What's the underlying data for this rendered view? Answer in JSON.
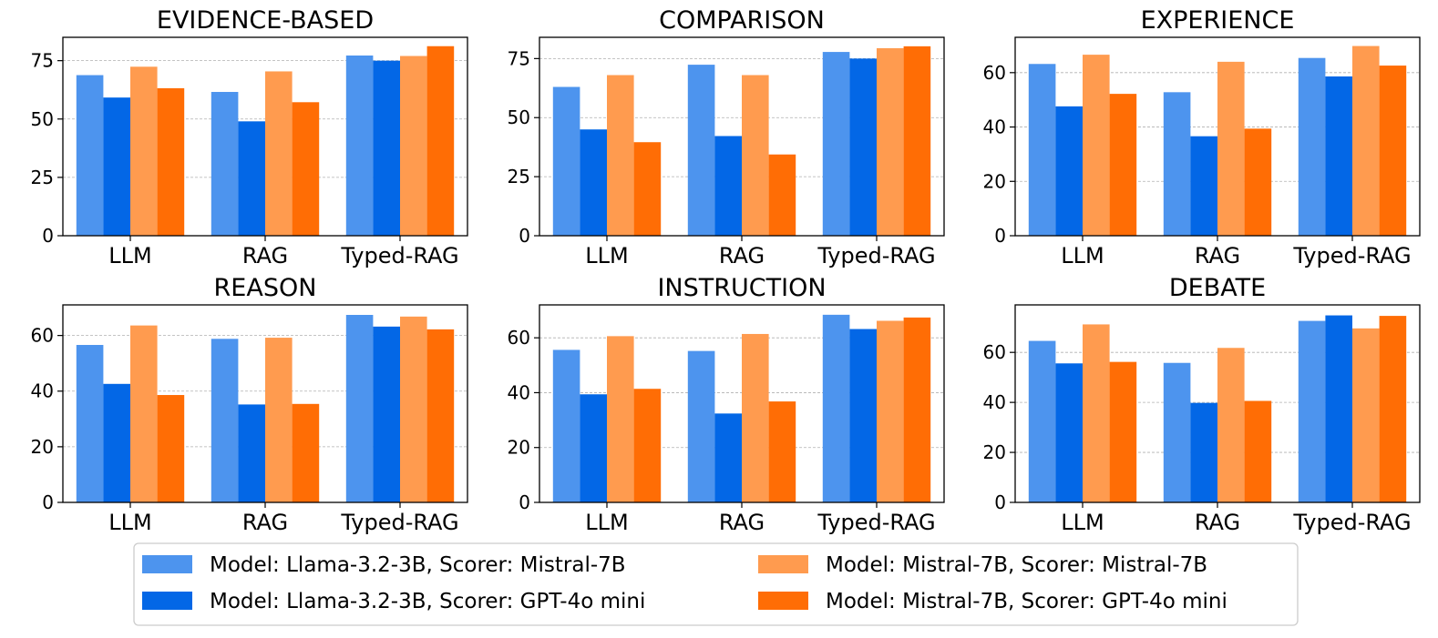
{
  "colors": {
    "llama_mistral": "#4d94ee",
    "llama_gpt": "#0367e6",
    "mistral_mistral": "#ff9b4f",
    "mistral_gpt": "#ff6d05"
  },
  "legend": [
    "Model: Llama-3.2-3B, Scorer: Mistral-7B",
    "Model: Llama-3.2-3B, Scorer: GPT-4o mini",
    "Model: Mistral-7B, Scorer: Mistral-7B",
    "Model: Mistral-7B, Scorer: GPT-4o mini"
  ],
  "chart_data": [
    {
      "type": "bar",
      "title": "EVIDENCE-BASED",
      "categories": [
        "LLM",
        "RAG",
        "Typed-RAG"
      ],
      "ylim": [
        0,
        85
      ],
      "yticks": [
        0,
        25,
        50,
        75
      ],
      "series": [
        {
          "name": "Model: Llama-3.2-3B, Scorer: Mistral-7B",
          "values": [
            68.8,
            61.6,
            77.2
          ]
        },
        {
          "name": "Model: Llama-3.2-3B, Scorer: GPT-4o mini",
          "values": [
            59.2,
            49.0,
            75.0
          ]
        },
        {
          "name": "Model: Mistral-7B, Scorer: Mistral-7B",
          "values": [
            72.4,
            70.4,
            77.0
          ]
        },
        {
          "name": "Model: Mistral-7B, Scorer: GPT-4o mini",
          "values": [
            63.2,
            57.2,
            81.2
          ]
        }
      ]
    },
    {
      "type": "bar",
      "title": "COMPARISON",
      "categories": [
        "LLM",
        "RAG",
        "Typed-RAG"
      ],
      "ylim": [
        0,
        84
      ],
      "yticks": [
        0,
        25,
        50,
        75
      ],
      "series": [
        {
          "name": "Model: Llama-3.2-3B, Scorer: Mistral-7B",
          "values": [
            63.0,
            72.4,
            77.8
          ]
        },
        {
          "name": "Model: Llama-3.2-3B, Scorer: GPT-4o mini",
          "values": [
            45.0,
            42.2,
            75.0
          ]
        },
        {
          "name": "Model: Mistral-7B, Scorer: Mistral-7B",
          "values": [
            68.0,
            68.0,
            79.4
          ]
        },
        {
          "name": "Model: Mistral-7B, Scorer: GPT-4o mini",
          "values": [
            39.6,
            34.4,
            80.2
          ]
        }
      ]
    },
    {
      "type": "bar",
      "title": "EXPERIENCE",
      "categories": [
        "LLM",
        "RAG",
        "Typed-RAG"
      ],
      "ylim": [
        0,
        73
      ],
      "yticks": [
        0,
        20,
        40,
        60
      ],
      "series": [
        {
          "name": "Model: Llama-3.2-3B, Scorer: Mistral-7B",
          "values": [
            63.2,
            52.8,
            65.4
          ]
        },
        {
          "name": "Model: Llama-3.2-3B, Scorer: GPT-4o mini",
          "values": [
            47.6,
            36.6,
            58.6
          ]
        },
        {
          "name": "Model: Mistral-7B, Scorer: Mistral-7B",
          "values": [
            66.6,
            64.0,
            69.8
          ]
        },
        {
          "name": "Model: Mistral-7B, Scorer: GPT-4o mini",
          "values": [
            52.2,
            39.4,
            62.6
          ]
        }
      ]
    },
    {
      "type": "bar",
      "title": "REASON",
      "categories": [
        "LLM",
        "RAG",
        "Typed-RAG"
      ],
      "ylim": [
        0,
        71
      ],
      "yticks": [
        0,
        20,
        40,
        60
      ],
      "series": [
        {
          "name": "Model: Llama-3.2-3B, Scorer: Mistral-7B",
          "values": [
            56.6,
            58.8,
            67.4
          ]
        },
        {
          "name": "Model: Llama-3.2-3B, Scorer: GPT-4o mini",
          "values": [
            42.6,
            35.2,
            63.2
          ]
        },
        {
          "name": "Model: Mistral-7B, Scorer: Mistral-7B",
          "values": [
            63.6,
            59.2,
            66.8
          ]
        },
        {
          "name": "Model: Mistral-7B, Scorer: GPT-4o mini",
          "values": [
            38.6,
            35.4,
            62.2
          ]
        }
      ]
    },
    {
      "type": "bar",
      "title": "INSTRUCTION",
      "categories": [
        "LLM",
        "RAG",
        "Typed-RAG"
      ],
      "ylim": [
        0,
        72
      ],
      "yticks": [
        0,
        20,
        40,
        60
      ],
      "series": [
        {
          "name": "Model: Llama-3.2-3B, Scorer: Mistral-7B",
          "values": [
            55.6,
            55.2,
            68.4
          ]
        },
        {
          "name": "Model: Llama-3.2-3B, Scorer: GPT-4o mini",
          "values": [
            39.4,
            32.4,
            63.2
          ]
        },
        {
          "name": "Model: Mistral-7B, Scorer: Mistral-7B",
          "values": [
            60.6,
            61.4,
            66.2
          ]
        },
        {
          "name": "Model: Mistral-7B, Scorer: GPT-4o mini",
          "values": [
            41.4,
            36.8,
            67.4
          ]
        }
      ]
    },
    {
      "type": "bar",
      "title": "DEBATE",
      "categories": [
        "LLM",
        "RAG",
        "Typed-RAG"
      ],
      "ylim": [
        0,
        79
      ],
      "yticks": [
        0,
        20,
        40,
        60
      ],
      "series": [
        {
          "name": "Model: Llama-3.2-3B, Scorer: Mistral-7B",
          "values": [
            64.6,
            55.8,
            72.6
          ]
        },
        {
          "name": "Model: Llama-3.2-3B, Scorer: GPT-4o mini",
          "values": [
            55.6,
            39.8,
            74.8
          ]
        },
        {
          "name": "Model: Mistral-7B, Scorer: Mistral-7B",
          "values": [
            71.2,
            61.8,
            69.6
          ]
        },
        {
          "name": "Model: Mistral-7B, Scorer: GPT-4o mini",
          "values": [
            56.2,
            40.6,
            74.6
          ]
        }
      ]
    }
  ]
}
